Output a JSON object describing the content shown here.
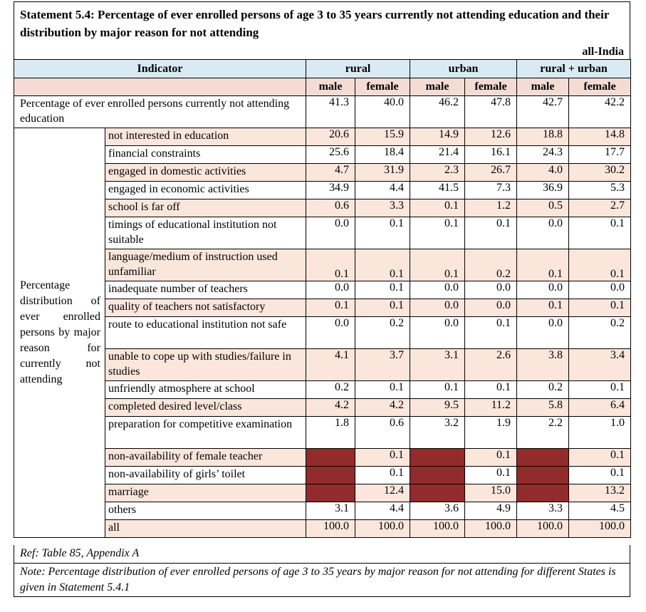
{
  "title": "Statement 5.4: Percentage of ever enrolled persons of age 3 to 35 years currently not attending education and their distribution by major reason for not attending",
  "region": "all-India",
  "header": {
    "indicator": "Indicator",
    "groups": [
      "rural",
      "urban",
      "rural + urban"
    ],
    "sub": [
      "male",
      "female",
      "male",
      "female",
      "male",
      "female"
    ]
  },
  "first_row": {
    "label": "Percentage of ever enrolled persons currently not attending education",
    "values": [
      "41.3",
      "40.0",
      "46.2",
      "47.8",
      "42.7",
      "42.2"
    ]
  },
  "dist_label": "Percentage distribution of ever enrolled persons by major reason for currently not attending",
  "rows": [
    {
      "label": "not interested in education",
      "values": [
        "20.6",
        "15.9",
        "14.9",
        "12.6",
        "18.8",
        "14.8"
      ]
    },
    {
      "label": "financial constraints",
      "values": [
        "25.6",
        "18.4",
        "21.4",
        "16.1",
        "24.3",
        "17.7"
      ]
    },
    {
      "label": "engaged in domestic activities",
      "values": [
        "4.7",
        "31.9",
        "2.3",
        "26.7",
        "4.0",
        "30.2"
      ]
    },
    {
      "label": "engaged in economic activities",
      "values": [
        "34.9",
        "4.4",
        "41.5",
        "7.3",
        "36.9",
        "5.3"
      ]
    },
    {
      "label": "school is far off",
      "values": [
        "0.6",
        "3.3",
        "0.1",
        "1.2",
        "0.5",
        "2.7"
      ]
    },
    {
      "label": "timings of educational institution not suitable",
      "values": [
        "0.0",
        "0.1",
        "0.1",
        "0.1",
        "0.0",
        "0.1"
      ]
    },
    {
      "label": "language/medium of instruction used unfamiliar",
      "values": [
        "0.1",
        "0.1",
        "0.1",
        "0.2",
        "0.1",
        "0.1"
      ]
    },
    {
      "label": "inadequate number of teachers",
      "values": [
        "0.0",
        "0.1",
        "0.0",
        "0.0",
        "0.0",
        "0.0"
      ]
    },
    {
      "label": "quality of teachers not satisfactory",
      "values": [
        "0.1",
        "0.1",
        "0.0",
        "0.0",
        "0.1",
        "0.1"
      ]
    },
    {
      "label": "route to educational institution not safe",
      "values": [
        "0.0",
        "0.2",
        "0.0",
        "0.1",
        "0.0",
        "0.2"
      ]
    },
    {
      "label": "unable to cope up with studies/failure in studies",
      "values": [
        "4.1",
        "3.7",
        "3.1",
        "2.6",
        "3.8",
        "3.4"
      ]
    },
    {
      "label": "unfriendly atmosphere at school",
      "values": [
        "0.2",
        "0.1",
        "0.1",
        "0.1",
        "0.2",
        "0.1"
      ]
    },
    {
      "label": "completed desired level/class",
      "values": [
        "4.2",
        "4.2",
        "9.5",
        "11.2",
        "5.8",
        "6.4"
      ]
    },
    {
      "label": "preparation for competitive examination",
      "values": [
        "1.8",
        "0.6",
        "3.2",
        "1.9",
        "2.2",
        "1.0"
      ]
    },
    {
      "label": "non-availability of female teacher",
      "values": [
        "",
        "0.1",
        "",
        "0.1",
        "",
        "0.1"
      ]
    },
    {
      "label": "non-availability of girls’ toilet",
      "values": [
        "",
        "0.1",
        "",
        "0.1",
        "",
        "0.1"
      ]
    },
    {
      "label": "marriage",
      "values": [
        "",
        "12.4",
        "",
        "15.0",
        "",
        "13.2"
      ]
    },
    {
      "label": "others",
      "values": [
        "3.1",
        "4.4",
        "3.6",
        "4.9",
        "3.3",
        "4.5"
      ]
    },
    {
      "label": "all",
      "values": [
        "100.0",
        "100.0",
        "100.0",
        "100.0",
        "100.0",
        "100.0"
      ]
    }
  ],
  "ref": "Ref: Table 85, Appendix A",
  "note": "Note:  Percentage distribution of ever enrolled persons of age 3 to 35 years by major reason for not attending for different States is given in Statement 5.4.1",
  "colors": {
    "header_blue": "#d9eaf3",
    "row_peach": "#fbe6dc",
    "na_cell": "#922b2b"
  }
}
